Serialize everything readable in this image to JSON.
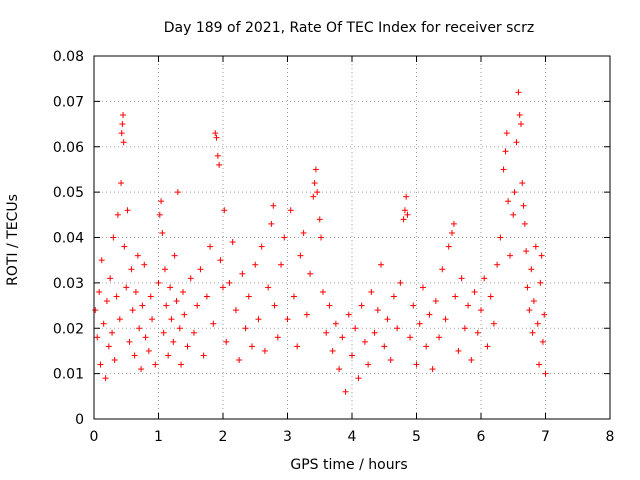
{
  "chart_data": {
    "type": "scatter",
    "title": "Day 189 of 2021, Rate Of TEC Index for receiver scrz",
    "xlabel": "GPS time / hours",
    "ylabel": "ROTI / TECUs",
    "xlim": [
      0,
      8
    ],
    "ylim": [
      0,
      0.08
    ],
    "x_ticks": [
      0,
      1,
      2,
      3,
      4,
      5,
      6,
      7,
      8
    ],
    "y_ticks": [
      0,
      0.01,
      0.02,
      0.03,
      0.04,
      0.05,
      0.06,
      0.07,
      0.08
    ],
    "x_tick_labels": [
      "0",
      "1",
      "2",
      "3",
      "4",
      "5",
      "6",
      "7",
      "8"
    ],
    "y_tick_labels": [
      "0",
      "0.01",
      "0.02",
      "0.03",
      "0.04",
      "0.05",
      "0.06",
      "0.07",
      "0.08"
    ],
    "grid": true,
    "marker": "+",
    "color": "#ff0000",
    "series": [
      {
        "name": "ROTI",
        "points": [
          [
            0.02,
            0.024
          ],
          [
            0.05,
            0.018
          ],
          [
            0.08,
            0.028
          ],
          [
            0.1,
            0.012
          ],
          [
            0.12,
            0.035
          ],
          [
            0.15,
            0.021
          ],
          [
            0.18,
            0.009
          ],
          [
            0.2,
            0.026
          ],
          [
            0.23,
            0.016
          ],
          [
            0.25,
            0.031
          ],
          [
            0.28,
            0.019
          ],
          [
            0.3,
            0.04
          ],
          [
            0.32,
            0.013
          ],
          [
            0.35,
            0.027
          ],
          [
            0.37,
            0.045
          ],
          [
            0.4,
            0.022
          ],
          [
            0.42,
            0.052
          ],
          [
            0.43,
            0.063
          ],
          [
            0.44,
            0.065
          ],
          [
            0.45,
            0.067
          ],
          [
            0.46,
            0.061
          ],
          [
            0.47,
            0.038
          ],
          [
            0.5,
            0.029
          ],
          [
            0.52,
            0.046
          ],
          [
            0.55,
            0.017
          ],
          [
            0.58,
            0.033
          ],
          [
            0.6,
            0.024
          ],
          [
            0.63,
            0.014
          ],
          [
            0.65,
            0.028
          ],
          [
            0.68,
            0.036
          ],
          [
            0.7,
            0.02
          ],
          [
            0.73,
            0.011
          ],
          [
            0.75,
            0.025
          ],
          [
            0.78,
            0.034
          ],
          [
            0.8,
            0.018
          ],
          [
            0.85,
            0.015
          ],
          [
            0.88,
            0.027
          ],
          [
            0.9,
            0.022
          ],
          [
            0.95,
            0.012
          ],
          [
            1.0,
            0.03
          ],
          [
            1.02,
            0.045
          ],
          [
            1.04,
            0.048
          ],
          [
            1.06,
            0.041
          ],
          [
            1.08,
            0.019
          ],
          [
            1.1,
            0.033
          ],
          [
            1.12,
            0.025
          ],
          [
            1.15,
            0.014
          ],
          [
            1.18,
            0.029
          ],
          [
            1.2,
            0.022
          ],
          [
            1.23,
            0.017
          ],
          [
            1.25,
            0.036
          ],
          [
            1.28,
            0.026
          ],
          [
            1.3,
            0.05
          ],
          [
            1.33,
            0.02
          ],
          [
            1.35,
            0.012
          ],
          [
            1.38,
            0.028
          ],
          [
            1.4,
            0.023
          ],
          [
            1.45,
            0.016
          ],
          [
            1.5,
            0.031
          ],
          [
            1.55,
            0.019
          ],
          [
            1.6,
            0.025
          ],
          [
            1.65,
            0.033
          ],
          [
            1.7,
            0.014
          ],
          [
            1.75,
            0.027
          ],
          [
            1.8,
            0.038
          ],
          [
            1.85,
            0.021
          ],
          [
            1.88,
            0.063
          ],
          [
            1.9,
            0.062
          ],
          [
            1.92,
            0.058
          ],
          [
            1.94,
            0.056
          ],
          [
            1.96,
            0.035
          ],
          [
            2.0,
            0.029
          ],
          [
            2.02,
            0.046
          ],
          [
            2.05,
            0.017
          ],
          [
            2.1,
            0.03
          ],
          [
            2.15,
            0.039
          ],
          [
            2.2,
            0.024
          ],
          [
            2.25,
            0.013
          ],
          [
            2.3,
            0.032
          ],
          [
            2.35,
            0.02
          ],
          [
            2.4,
            0.027
          ],
          [
            2.45,
            0.016
          ],
          [
            2.5,
            0.034
          ],
          [
            2.55,
            0.022
          ],
          [
            2.6,
            0.038
          ],
          [
            2.65,
            0.015
          ],
          [
            2.7,
            0.029
          ],
          [
            2.75,
            0.043
          ],
          [
            2.78,
            0.047
          ],
          [
            2.8,
            0.025
          ],
          [
            2.85,
            0.018
          ],
          [
            2.9,
            0.034
          ],
          [
            2.95,
            0.04
          ],
          [
            3.0,
            0.022
          ],
          [
            3.05,
            0.046
          ],
          [
            3.1,
            0.027
          ],
          [
            3.15,
            0.016
          ],
          [
            3.2,
            0.036
          ],
          [
            3.25,
            0.041
          ],
          [
            3.3,
            0.023
          ],
          [
            3.35,
            0.032
          ],
          [
            3.4,
            0.049
          ],
          [
            3.42,
            0.052
          ],
          [
            3.44,
            0.055
          ],
          [
            3.46,
            0.05
          ],
          [
            3.5,
            0.044
          ],
          [
            3.52,
            0.04
          ],
          [
            3.55,
            0.028
          ],
          [
            3.6,
            0.019
          ],
          [
            3.65,
            0.025
          ],
          [
            3.7,
            0.015
          ],
          [
            3.75,
            0.021
          ],
          [
            3.8,
            0.011
          ],
          [
            3.85,
            0.018
          ],
          [
            3.9,
            0.006
          ],
          [
            3.95,
            0.023
          ],
          [
            4.0,
            0.014
          ],
          [
            4.05,
            0.02
          ],
          [
            4.1,
            0.009
          ],
          [
            4.15,
            0.025
          ],
          [
            4.2,
            0.017
          ],
          [
            4.25,
            0.012
          ],
          [
            4.3,
            0.028
          ],
          [
            4.35,
            0.019
          ],
          [
            4.4,
            0.024
          ],
          [
            4.45,
            0.034
          ],
          [
            4.5,
            0.016
          ],
          [
            4.55,
            0.022
          ],
          [
            4.6,
            0.013
          ],
          [
            4.65,
            0.027
          ],
          [
            4.7,
            0.02
          ],
          [
            4.75,
            0.03
          ],
          [
            4.8,
            0.044
          ],
          [
            4.82,
            0.046
          ],
          [
            4.84,
            0.049
          ],
          [
            4.86,
            0.045
          ],
          [
            4.9,
            0.018
          ],
          [
            4.95,
            0.025
          ],
          [
            5.0,
            0.012
          ],
          [
            5.05,
            0.021
          ],
          [
            5.1,
            0.029
          ],
          [
            5.15,
            0.016
          ],
          [
            5.2,
            0.023
          ],
          [
            5.25,
            0.011
          ],
          [
            5.3,
            0.026
          ],
          [
            5.35,
            0.018
          ],
          [
            5.4,
            0.033
          ],
          [
            5.45,
            0.022
          ],
          [
            5.5,
            0.038
          ],
          [
            5.55,
            0.041
          ],
          [
            5.58,
            0.043
          ],
          [
            5.6,
            0.027
          ],
          [
            5.65,
            0.015
          ],
          [
            5.7,
            0.031
          ],
          [
            5.75,
            0.02
          ],
          [
            5.8,
            0.025
          ],
          [
            5.85,
            0.013
          ],
          [
            5.9,
            0.028
          ],
          [
            5.95,
            0.019
          ],
          [
            6.0,
            0.024
          ],
          [
            6.05,
            0.031
          ],
          [
            6.1,
            0.016
          ],
          [
            6.15,
            0.027
          ],
          [
            6.2,
            0.021
          ],
          [
            6.25,
            0.034
          ],
          [
            6.3,
            0.04
          ],
          [
            6.35,
            0.055
          ],
          [
            6.38,
            0.059
          ],
          [
            6.4,
            0.063
          ],
          [
            6.42,
            0.048
          ],
          [
            6.45,
            0.036
          ],
          [
            6.5,
            0.045
          ],
          [
            6.52,
            0.05
          ],
          [
            6.55,
            0.061
          ],
          [
            6.58,
            0.072
          ],
          [
            6.6,
            0.067
          ],
          [
            6.62,
            0.065
          ],
          [
            6.64,
            0.052
          ],
          [
            6.66,
            0.047
          ],
          [
            6.68,
            0.043
          ],
          [
            6.7,
            0.037
          ],
          [
            6.72,
            0.029
          ],
          [
            6.75,
            0.024
          ],
          [
            6.78,
            0.033
          ],
          [
            6.8,
            0.019
          ],
          [
            6.82,
            0.026
          ],
          [
            6.85,
            0.038
          ],
          [
            6.88,
            0.021
          ],
          [
            6.9,
            0.012
          ],
          [
            6.92,
            0.03
          ],
          [
            6.94,
            0.036
          ],
          [
            6.96,
            0.017
          ],
          [
            6.98,
            0.023
          ],
          [
            7.0,
            0.01
          ]
        ]
      }
    ]
  }
}
